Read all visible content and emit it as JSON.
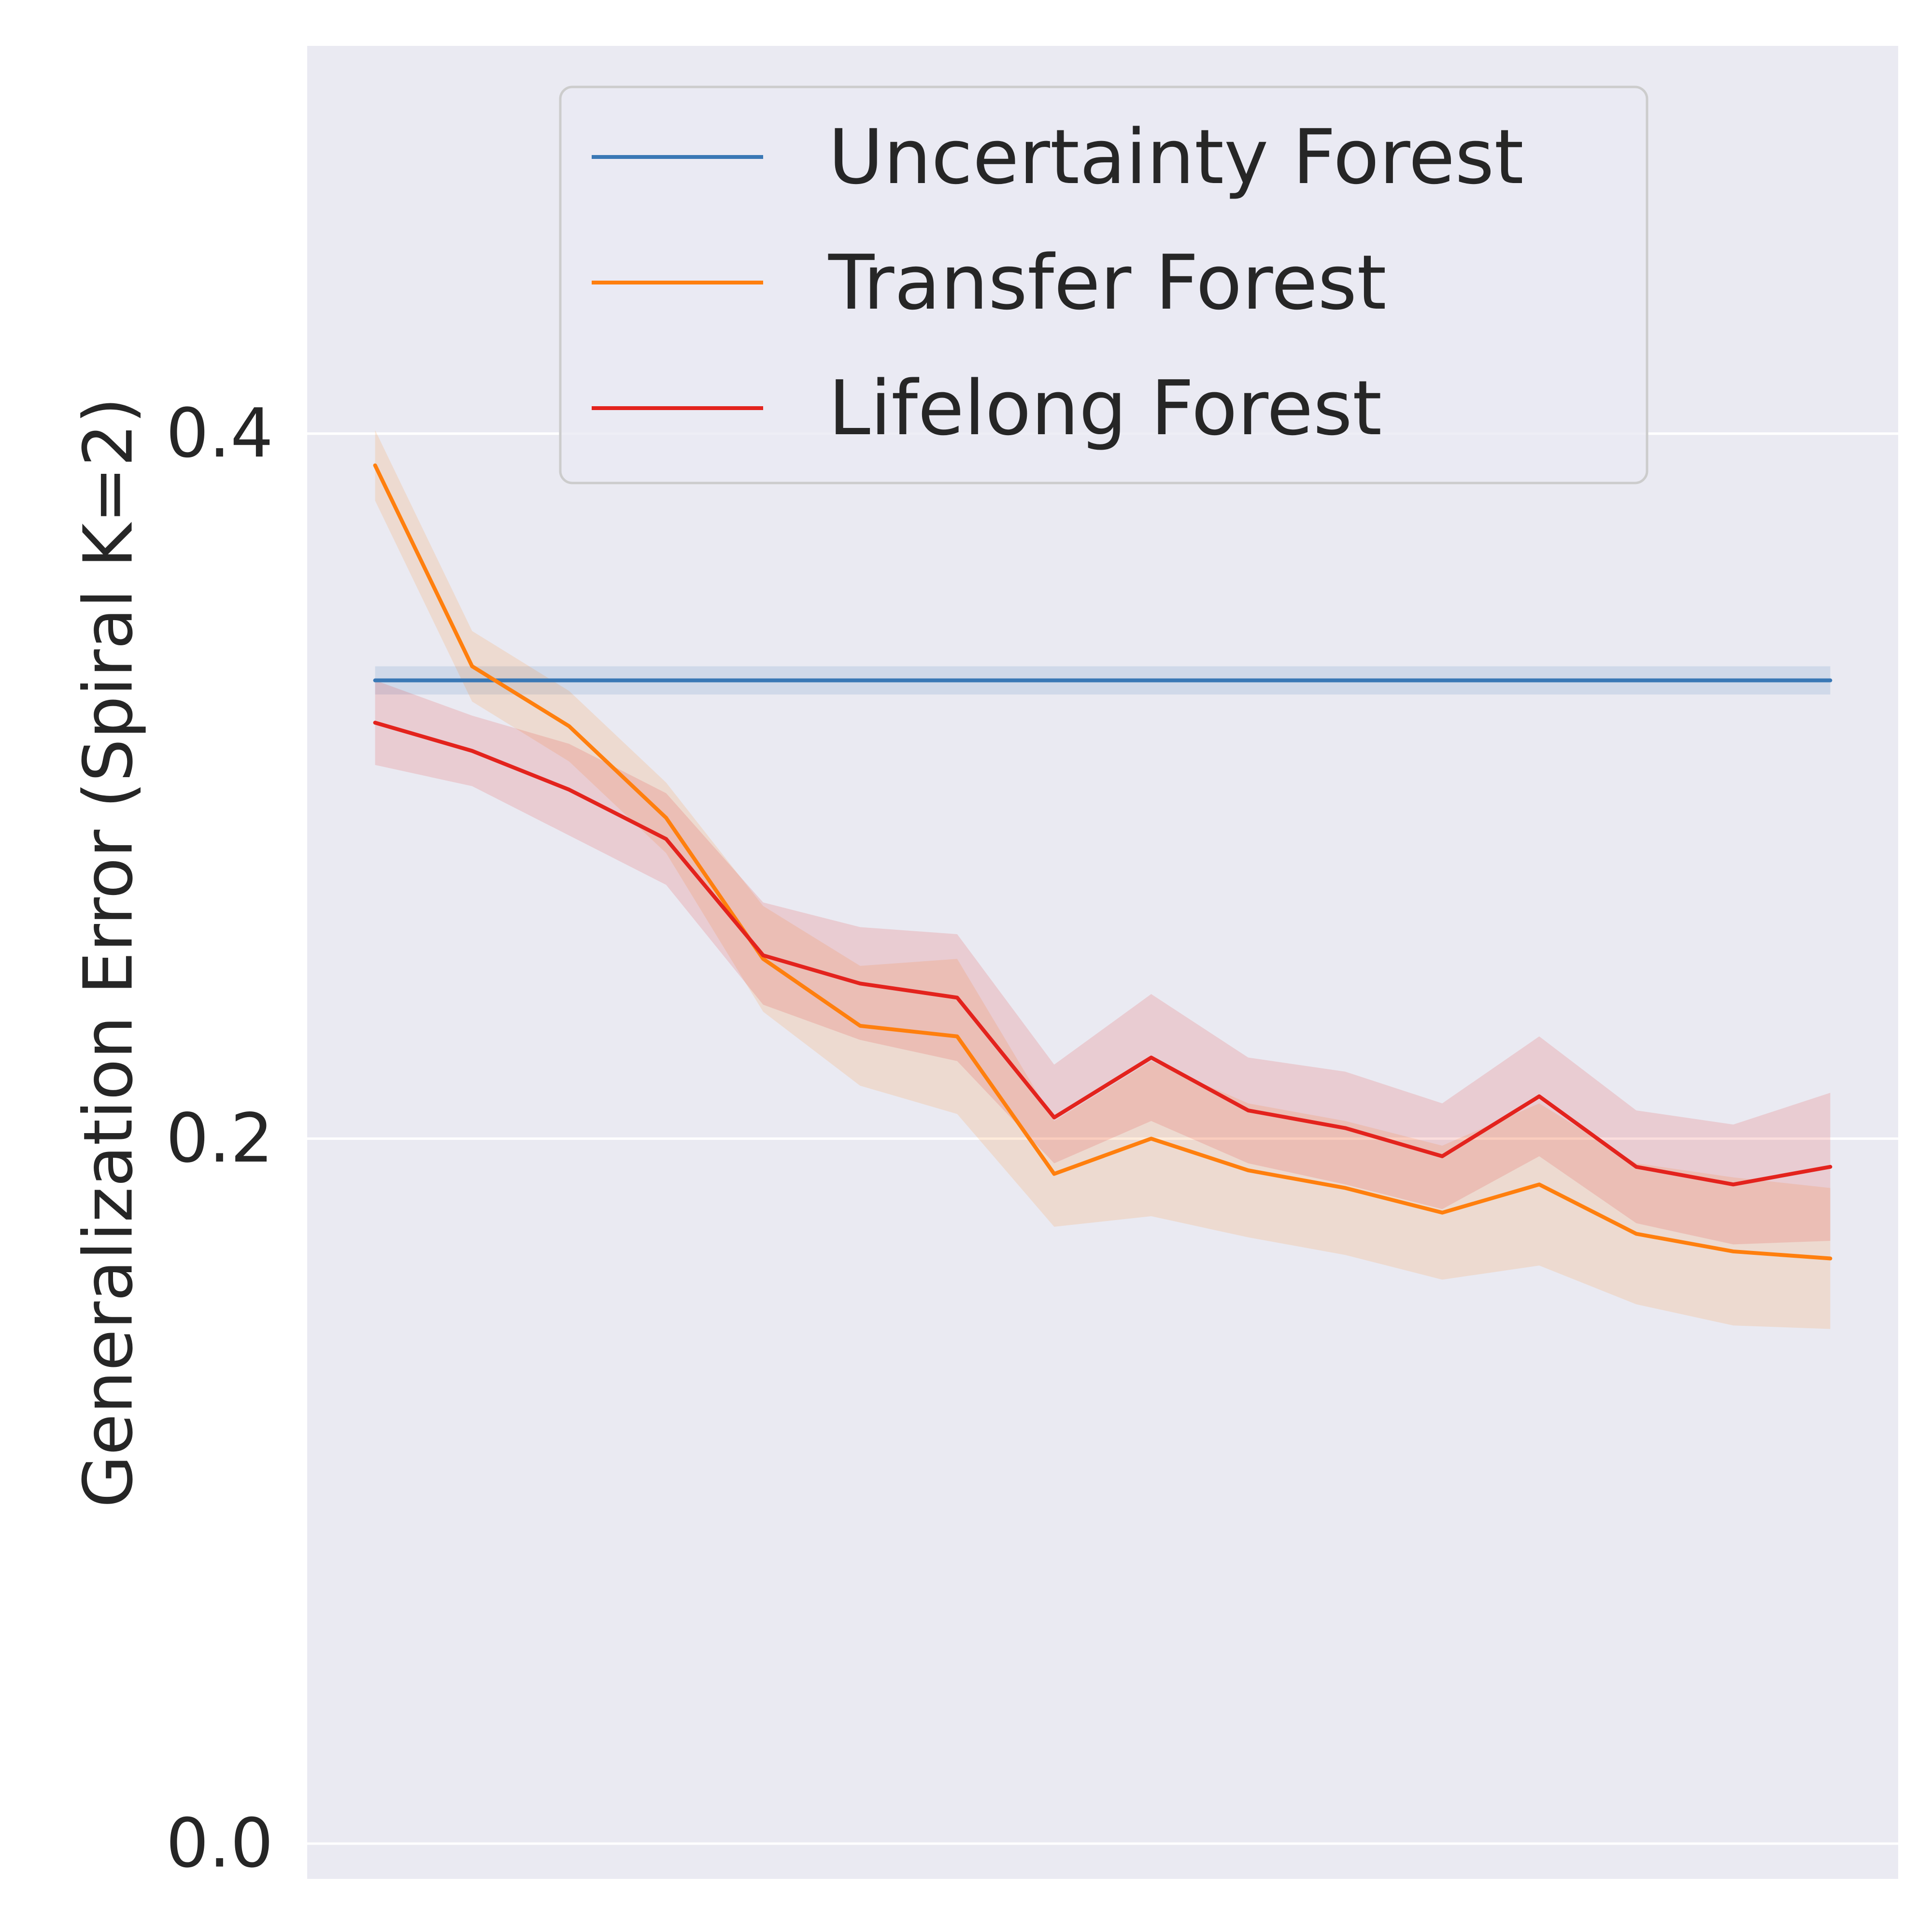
{
  "chart_data": {
    "type": "line",
    "ylabel": "Generalization Error (Spiral K=2)",
    "xlabel": "",
    "title": "",
    "ylim": [
      -0.01,
      0.51
    ],
    "xlim": [
      0.3,
      16.7
    ],
    "yticks": [
      0.0,
      0.2,
      0.4
    ],
    "ytick_labels": [
      "0.0",
      "0.2",
      "0.4"
    ],
    "grid": true,
    "legend_position": "top-center",
    "x": [
      1,
      2,
      3,
      4,
      5,
      6,
      7,
      8,
      9,
      10,
      11,
      12,
      13,
      14,
      15,
      16
    ],
    "series": [
      {
        "name": "Uncertainty Forest",
        "color": "#3a78b5",
        "values": [
          0.33,
          0.33,
          0.33,
          0.33,
          0.33,
          0.33,
          0.33,
          0.33,
          0.33,
          0.33,
          0.33,
          0.33,
          0.33,
          0.33,
          0.33,
          0.33
        ],
        "lower": [
          0.326,
          0.326,
          0.326,
          0.326,
          0.326,
          0.326,
          0.326,
          0.326,
          0.326,
          0.326,
          0.326,
          0.326,
          0.326,
          0.326,
          0.326,
          0.326
        ],
        "upper": [
          0.334,
          0.334,
          0.334,
          0.334,
          0.334,
          0.334,
          0.334,
          0.334,
          0.334,
          0.334,
          0.334,
          0.334,
          0.334,
          0.334,
          0.334,
          0.334
        ]
      },
      {
        "name": "Transfer Forest",
        "color": "#ff7f0e",
        "values": [
          0.391,
          0.334,
          0.317,
          0.291,
          0.251,
          0.232,
          0.229,
          0.19,
          0.2,
          0.191,
          0.186,
          0.179,
          0.187,
          0.173,
          0.168,
          0.166
        ],
        "lower": [
          0.381,
          0.324,
          0.307,
          0.281,
          0.236,
          0.215,
          0.207,
          0.175,
          0.178,
          0.172,
          0.167,
          0.16,
          0.164,
          0.153,
          0.147,
          0.146
        ],
        "upper": [
          0.401,
          0.344,
          0.327,
          0.301,
          0.266,
          0.249,
          0.251,
          0.205,
          0.222,
          0.21,
          0.205,
          0.198,
          0.21,
          0.193,
          0.189,
          0.186
        ]
      },
      {
        "name": "Lifelong Forest",
        "color": "#e3231d",
        "values": [
          0.318,
          0.31,
          0.299,
          0.285,
          0.252,
          0.244,
          0.24,
          0.206,
          0.223,
          0.208,
          0.203,
          0.195,
          0.212,
          0.192,
          0.187,
          0.192
        ],
        "lower": [
          0.306,
          0.3,
          0.286,
          0.272,
          0.238,
          0.228,
          0.222,
          0.193,
          0.205,
          0.193,
          0.187,
          0.18,
          0.195,
          0.176,
          0.17,
          0.171
        ],
        "upper": [
          0.33,
          0.32,
          0.312,
          0.298,
          0.267,
          0.26,
          0.258,
          0.221,
          0.241,
          0.223,
          0.219,
          0.21,
          0.229,
          0.208,
          0.204,
          0.213
        ]
      }
    ]
  }
}
